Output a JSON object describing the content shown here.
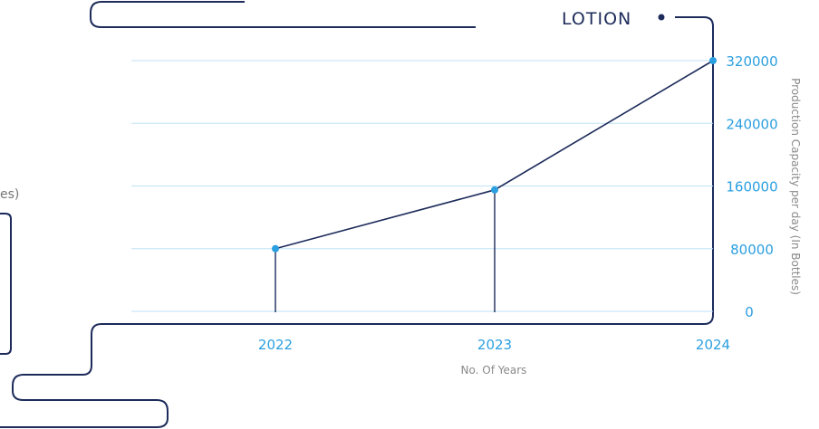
{
  "chart_data": {
    "type": "line",
    "title": "LOTION",
    "xlabel": "No. Of Years",
    "ylabel": "Production Capacity per day (In Bottles)",
    "categories": [
      "2022",
      "2023",
      "2024"
    ],
    "series": [
      {
        "name": "LOTION",
        "values": [
          80000,
          155000,
          320000
        ]
      }
    ],
    "ylim": [
      0,
      320000
    ],
    "yticks": [
      "0",
      "80000",
      "160000",
      "240000",
      "320000"
    ],
    "grid": true,
    "legend": "none"
  },
  "fragments": {
    "left_cut_text": "es)"
  },
  "colors": {
    "frame": "#1c2b5a",
    "accent": "#2b9fe0",
    "grid": "#bfe2f5",
    "muted": "#8a8a8a"
  }
}
